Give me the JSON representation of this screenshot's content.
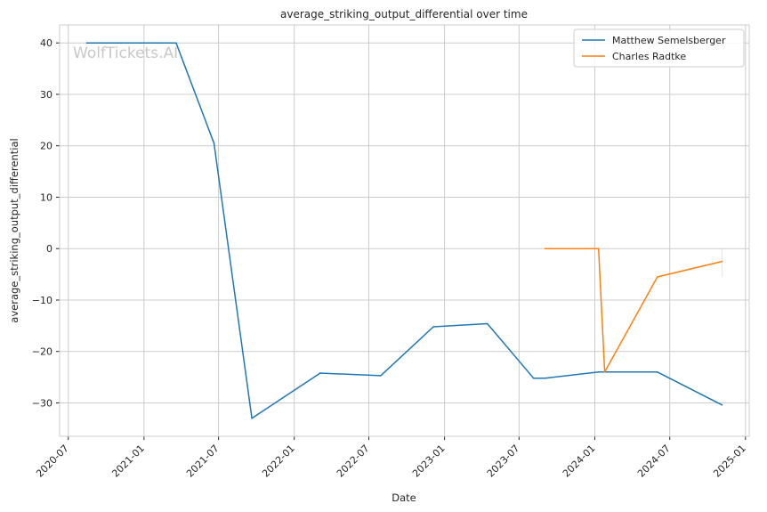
{
  "chart_data": {
    "type": "line",
    "title": "average_striking_output_differential over time",
    "xlabel": "Date",
    "ylabel": "average_striking_output_differential",
    "watermark": "WolfTickets.AI",
    "x_ticks": [
      "2020-07",
      "2021-01",
      "2021-07",
      "2022-01",
      "2022-07",
      "2023-01",
      "2023-07",
      "2024-01",
      "2024-07",
      "2025-01"
    ],
    "y_ticks": [
      40,
      30,
      20,
      10,
      0,
      -10,
      -20,
      -30
    ],
    "xlim": [
      "2020-06-10",
      "2025-01-10"
    ],
    "ylim": [
      -36.5,
      43.5
    ],
    "grid": true,
    "legend_position": "top-right",
    "series": [
      {
        "name": "Matthew Semelsberger",
        "color": "#1f77b4",
        "points": [
          {
            "x": "2020-08-15",
            "y": 40
          },
          {
            "x": "2021-03-20",
            "y": 40
          },
          {
            "x": "2021-06-20",
            "y": 20.5
          },
          {
            "x": "2021-09-20",
            "y": -33
          },
          {
            "x": "2022-03-05",
            "y": -24.2
          },
          {
            "x": "2022-07-30",
            "y": -24.7
          },
          {
            "x": "2022-12-05",
            "y": -15.2
          },
          {
            "x": "2023-04-15",
            "y": -14.6
          },
          {
            "x": "2023-08-05",
            "y": -25.2
          },
          {
            "x": "2023-09-02",
            "y": -25.2
          },
          {
            "x": "2024-01-10",
            "y": -24
          },
          {
            "x": "2024-06-01",
            "y": -24
          },
          {
            "x": "2024-11-05",
            "y": -30.4
          }
        ]
      },
      {
        "name": "Charles Radtke",
        "color": "#ff7f0e",
        "points": [
          {
            "x": "2023-09-02",
            "y": 0
          },
          {
            "x": "2024-01-10",
            "y": 0
          },
          {
            "x": "2024-01-25",
            "y": -24
          },
          {
            "x": "2024-06-01",
            "y": -5.5
          },
          {
            "x": "2024-11-05",
            "y": -2.5
          }
        ]
      }
    ]
  }
}
